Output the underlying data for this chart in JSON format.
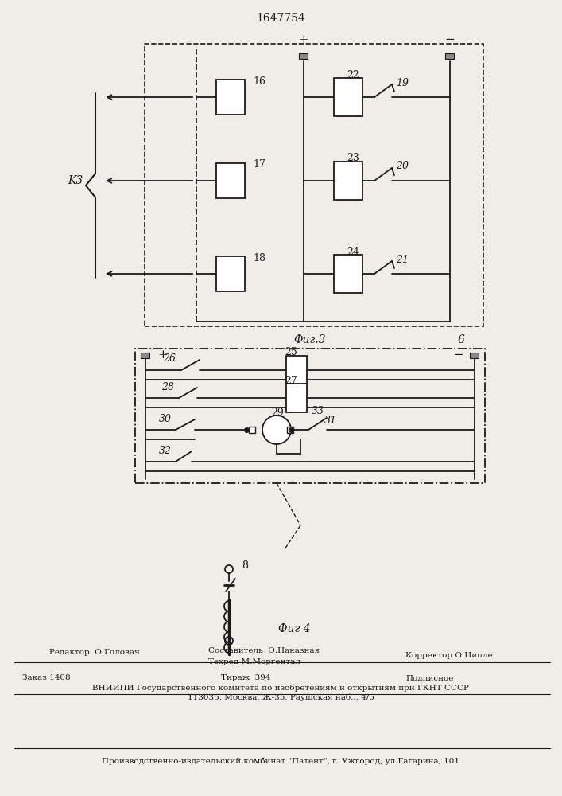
{
  "title": "1647754",
  "fig3_label": "Фиг.3",
  "fig4_label": "Фиг 4",
  "kz_label": "K3",
  "plus_label": "+",
  "minus_label": "−",
  "label_6": "6",
  "editor": "Редактор  О.Головач",
  "compiler": "Составитель  О.Наказная",
  "techred": "Техред М.Моргентал",
  "corrector": "Корректор О.Ципле",
  "order": "Заказ 1408",
  "tirazh": "Тираж  394",
  "podpisnoe": "Подписное",
  "vniip1": "ВНИИПИ Государственного комитета по изобретениям и открытиям при ГКНТ СССР",
  "vniip2": "113035, Москва, Ж-35, Раушская наб.., 4/5",
  "proizv": "Производственно-издательский комбинат \"Патент\", г. Ужгород, ул.Гагарина, 101",
  "bg_color": "#f0ede8",
  "line_color": "#1a1a1a"
}
